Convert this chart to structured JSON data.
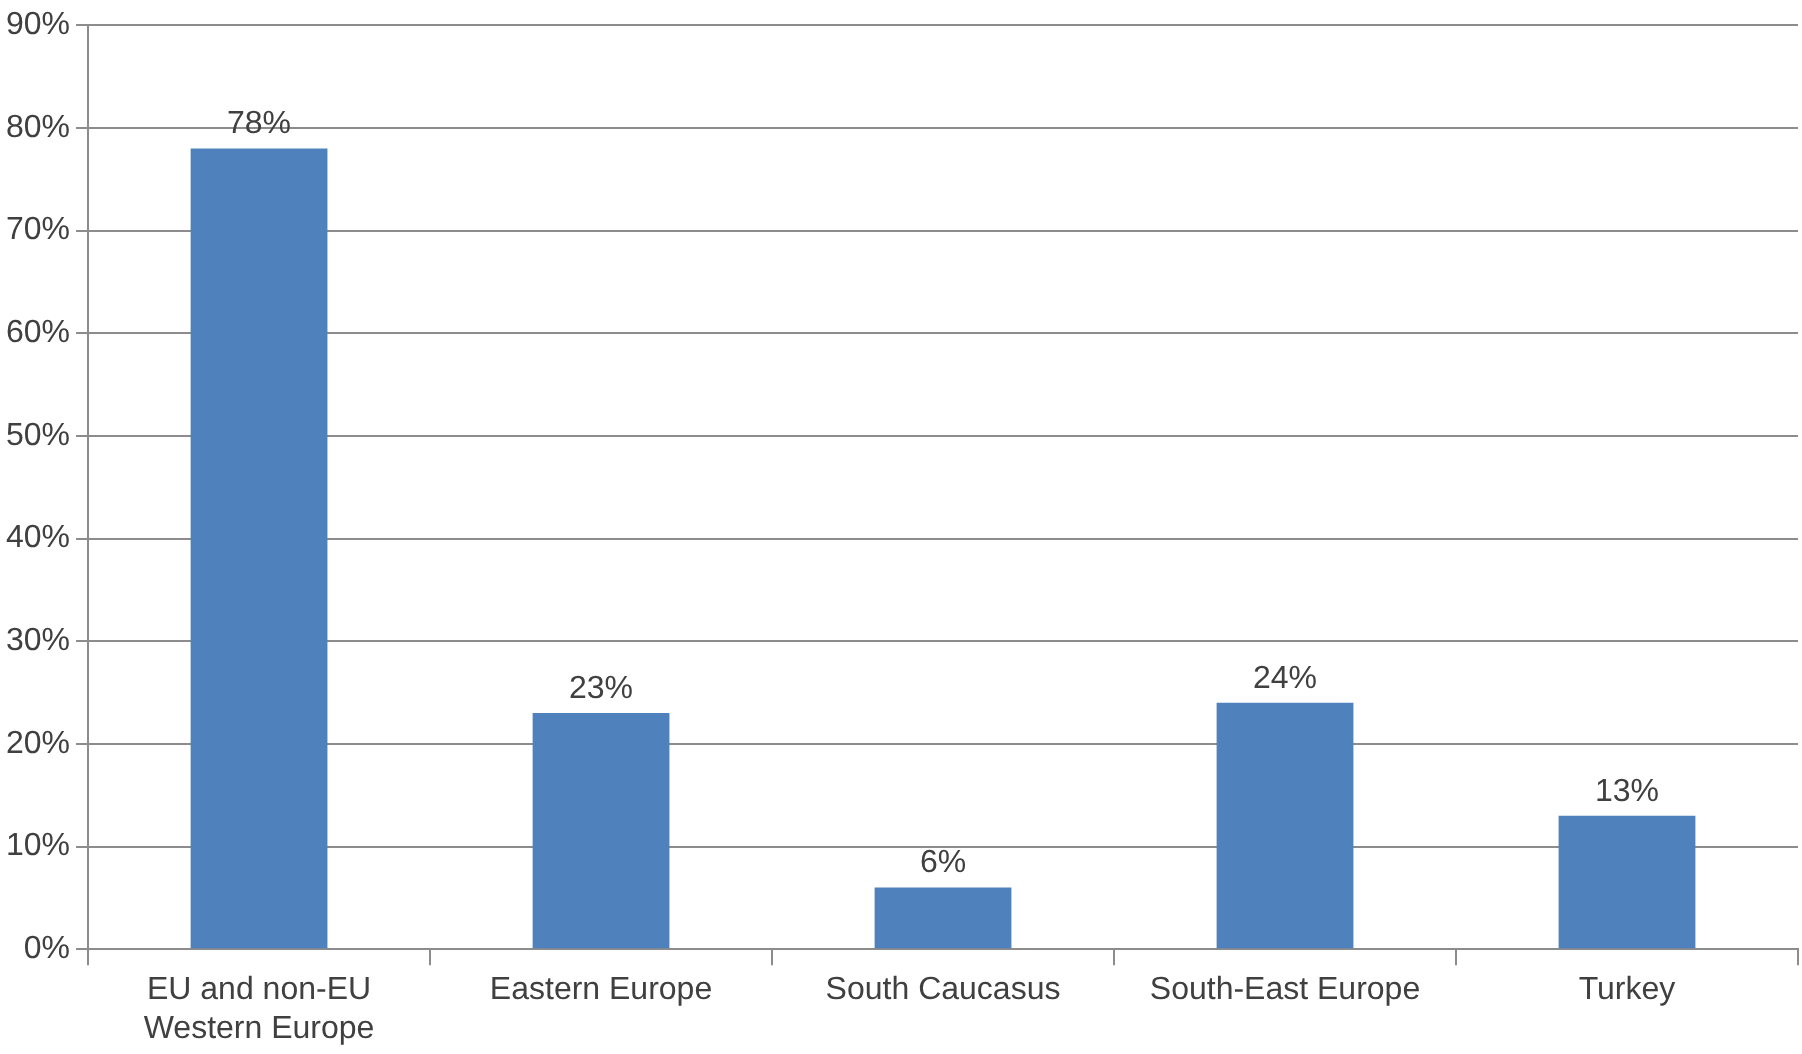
{
  "chart_data": {
    "type": "bar",
    "categories": [
      "EU and non-EU Western Europe",
      "Eastern Europe",
      "South Caucasus",
      "South-East Europe",
      "Turkey"
    ],
    "values": [
      78,
      23,
      6,
      24,
      13
    ],
    "value_labels": [
      "78%",
      "23%",
      "6%",
      "24%",
      "13%"
    ],
    "color": "#4f81bd",
    "ylim": [
      0,
      90
    ],
    "yticks": [
      {
        "value": 0,
        "label": "0%"
      },
      {
        "value": 10,
        "label": "10%"
      },
      {
        "value": 20,
        "label": "20%"
      },
      {
        "value": 30,
        "label": "30%"
      },
      {
        "value": 40,
        "label": "40%"
      },
      {
        "value": 50,
        "label": "50%"
      },
      {
        "value": 60,
        "label": "60%"
      },
      {
        "value": 70,
        "label": "70%"
      },
      {
        "value": 80,
        "label": "80%"
      },
      {
        "value": 90,
        "label": "90%"
      }
    ],
    "grid": "y",
    "legend": false
  }
}
